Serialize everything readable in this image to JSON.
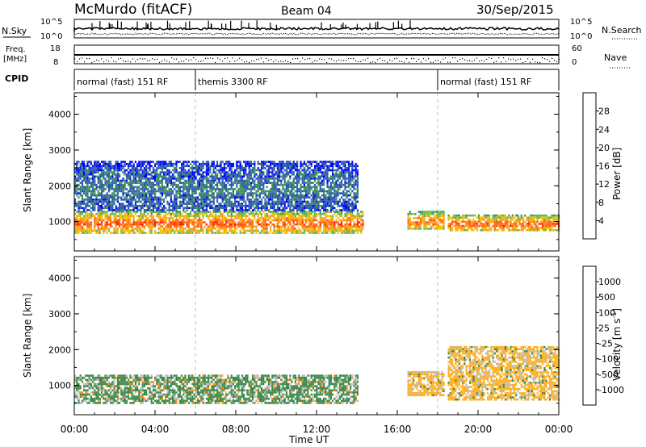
{
  "header": {
    "station": "McMurdo (fitACF)",
    "beam": "Beam 04",
    "date": "30/Sep/2015"
  },
  "top_panels": {
    "nsky_label": "N.Sky",
    "nsky_ticks": [
      "10^5",
      "10^0"
    ],
    "nsearch_label": "N.Search",
    "nsearch_ticks": [
      "10^5",
      "10^0"
    ],
    "freq_label_1": "Freq.",
    "freq_label_2": "[MHz]",
    "freq_ticks": [
      "18",
      "8"
    ],
    "nave_label": "Nave",
    "nave_ticks": [
      "60",
      "0"
    ],
    "cpid_label": "CPID",
    "cpid_segments": [
      {
        "label": "normal (fast) 151 RF",
        "start_hour": 0,
        "end_hour": 6
      },
      {
        "label": "themis 3300 RF",
        "start_hour": 6,
        "end_hour": 18
      },
      {
        "label": "normal (fast) 151 RF",
        "start_hour": 18,
        "end_hour": 24
      }
    ]
  },
  "panels": {
    "power": {
      "ylabel": "Slant Range [km]",
      "yticks": [
        "1000",
        "2000",
        "3000",
        "4000"
      ],
      "cbar_title": "Power [dB]",
      "cbar_ticks": [
        "4",
        "8",
        "12",
        "16",
        "20",
        "24",
        "28"
      ],
      "cbar_colors": [
        "#0000ff",
        "#2c58b0",
        "#3d8f5e",
        "#5fb85a",
        "#f0c000",
        "#ff9c20",
        "#ff6010",
        "#ff2000"
      ]
    },
    "velocity": {
      "ylabel": "Slant Range [km]",
      "yticks": [
        "1000",
        "2000",
        "3000",
        "4000"
      ],
      "cbar_title": "Velocity [m s",
      "cbar_title_sup": "-1",
      "cbar_title_end": "]",
      "cbar_ticks": [
        "1000",
        "500",
        "100",
        "25",
        "-25",
        "-100",
        "-500",
        "-1000"
      ],
      "cbar_colors": [
        "#1a3ccc",
        "#2a6ea8",
        "#3e8a4a",
        "#4db83a",
        "#bdbdbd",
        "#ffb020",
        "#ff8a10",
        "#ff5a00",
        "#ff1a00"
      ]
    }
  },
  "xaxis": {
    "label": "Time UT",
    "ticks": [
      "00:00",
      "04:00",
      "08:00",
      "12:00",
      "16:00",
      "20:00",
      "00:00"
    ]
  },
  "chart_data": [
    {
      "type": "heatmap",
      "title": "Power [dB]",
      "xlabel": "Time UT",
      "ylabel": "Slant Range [km]",
      "x_range_hours": [
        0,
        24
      ],
      "ylim": [
        180,
        4600
      ],
      "value_range": [
        0,
        30
      ],
      "color_levels": [
        4,
        8,
        12,
        16,
        20,
        24,
        28
      ],
      "features": [
        {
          "name": "main band",
          "hours": [
            0,
            14.3
          ],
          "range_km": [
            700,
            1300
          ],
          "power_db": 26
        },
        {
          "name": "main band",
          "hours": [
            16.5,
            18.3
          ],
          "range_km": [
            800,
            1300
          ],
          "power_db": 24
        },
        {
          "name": "main band",
          "hours": [
            18.5,
            24
          ],
          "range_km": [
            750,
            1200
          ],
          "power_db": 26
        },
        {
          "name": "diffuse upper",
          "hours": [
            0,
            14
          ],
          "range_km": [
            1300,
            2700
          ],
          "power_db": 8
        }
      ]
    },
    {
      "type": "heatmap",
      "title": "Velocity [m s-1]",
      "xlabel": "Time UT",
      "ylabel": "Slant Range [km]",
      "x_range_hours": [
        0,
        24
      ],
      "ylim": [
        180,
        4600
      ],
      "color_levels": [
        1000,
        500,
        100,
        25,
        -25,
        -100,
        -500,
        -1000
      ],
      "features": [
        {
          "hours": [
            0,
            14
          ],
          "range_km": [
            500,
            1300
          ],
          "velocity_ms": 100
        },
        {
          "hours": [
            16.5,
            18.3
          ],
          "range_km": [
            700,
            1400
          ],
          "velocity_ms": -100
        },
        {
          "hours": [
            18.5,
            24
          ],
          "range_km": [
            600,
            2100
          ],
          "velocity_ms": -100
        }
      ]
    }
  ]
}
